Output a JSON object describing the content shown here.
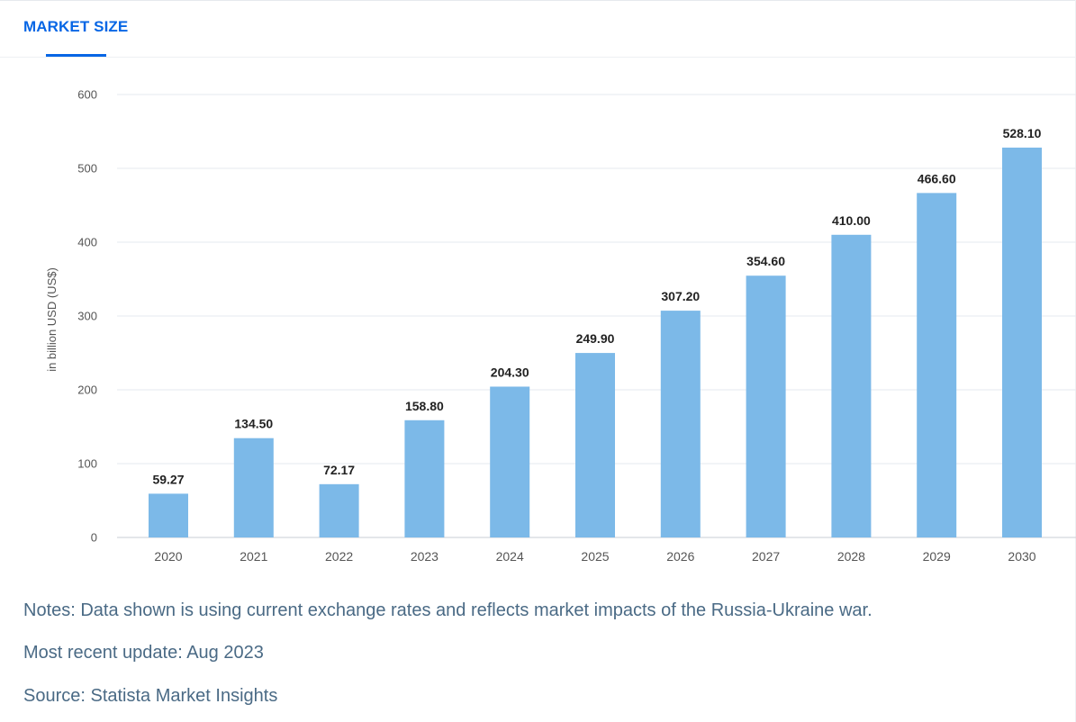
{
  "tab": {
    "label": "MARKET SIZE"
  },
  "chart_data": {
    "type": "bar",
    "categories": [
      "2020",
      "2021",
      "2022",
      "2023",
      "2024",
      "2025",
      "2026",
      "2027",
      "2028",
      "2029",
      "2030"
    ],
    "values": [
      59.27,
      134.5,
      72.17,
      158.8,
      204.3,
      249.9,
      307.2,
      354.6,
      410.0,
      466.6,
      528.1
    ],
    "value_labels": [
      "59.27",
      "134.50",
      "72.17",
      "158.80",
      "204.30",
      "249.90",
      "307.20",
      "354.60",
      "410.00",
      "466.60",
      "528.10"
    ],
    "ylabel": "in billion USD (US$)",
    "xlabel": "",
    "ylim": [
      0,
      600
    ],
    "yticks": [
      0,
      100,
      200,
      300,
      400,
      500,
      600
    ],
    "grid": true,
    "bar_color": "#7cb9e8",
    "grid_color": "#e6e9ef"
  },
  "notes": {
    "note": "Notes: Data shown is using current exchange rates and reflects market impacts of the Russia-Ukraine war.",
    "update": "Most recent update: Aug 2023",
    "source": "Source: Statista Market Insights"
  },
  "colors": {
    "accent": "#0666e5",
    "note_text": "#4a6a85",
    "axis_text": "#555555",
    "label_text": "#222222"
  }
}
